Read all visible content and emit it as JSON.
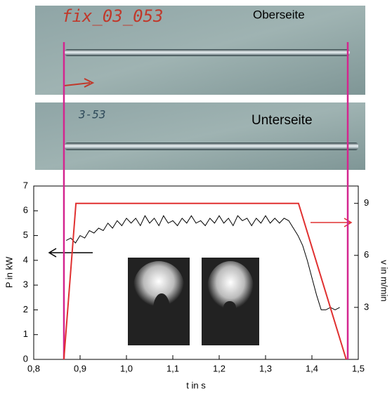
{
  "chart_data": {
    "type": "line",
    "annotations": [
      "fix_03_053",
      "Oberseite",
      "3-53",
      "Unterseite"
    ],
    "xlabel": "t in s",
    "ylabel": "P in kW",
    "y2label": "v in m/min",
    "xlim": [
      0.8,
      1.5
    ],
    "xticks": [
      {
        "value": 0.8,
        "label": "0,8"
      },
      {
        "value": 0.9,
        "label": "0,9"
      },
      {
        "value": 1.0,
        "label": "1,0"
      },
      {
        "value": 1.1,
        "label": "1,1"
      },
      {
        "value": 1.2,
        "label": "1,2"
      },
      {
        "value": 1.3,
        "label": "1,3"
      },
      {
        "value": 1.4,
        "label": "1,4"
      },
      {
        "value": 1.5,
        "label": "1,5"
      }
    ],
    "ylim": [
      0,
      7
    ],
    "yticks": [
      0,
      1,
      2,
      3,
      4,
      5,
      6,
      7
    ],
    "y2lim": [
      0,
      10
    ],
    "y2ticks": [
      3,
      6,
      9
    ],
    "series": [
      {
        "color": "#000000",
        "x": [
          0.87,
          0.88,
          0.89,
          0.9,
          0.91,
          0.92,
          0.93,
          0.94,
          0.95,
          0.96,
          0.97,
          0.98,
          0.99,
          1.0,
          1.01,
          1.02,
          1.03,
          1.04,
          1.05,
          1.06,
          1.07,
          1.08,
          1.09,
          1.1,
          1.11,
          1.12,
          1.13,
          1.14,
          1.15,
          1.16,
          1.17,
          1.18,
          1.19,
          1.2,
          1.21,
          1.22,
          1.23,
          1.24,
          1.25,
          1.26,
          1.27,
          1.28,
          1.29,
          1.3,
          1.31,
          1.32,
          1.33,
          1.34,
          1.35,
          1.36,
          1.37,
          1.38,
          1.39,
          1.4,
          1.41,
          1.42,
          1.43,
          1.44,
          1.45,
          1.46
        ],
        "values": [
          4.8,
          4.9,
          4.7,
          5.0,
          4.9,
          5.2,
          5.1,
          5.3,
          5.2,
          5.5,
          5.3,
          5.6,
          5.4,
          5.7,
          5.5,
          5.7,
          5.4,
          5.8,
          5.5,
          5.7,
          5.4,
          5.8,
          5.5,
          5.6,
          5.4,
          5.7,
          5.5,
          5.8,
          5.5,
          5.6,
          5.4,
          5.7,
          5.5,
          5.8,
          5.5,
          5.7,
          5.4,
          5.8,
          5.6,
          5.7,
          5.4,
          5.7,
          5.5,
          5.8,
          5.5,
          5.7,
          5.5,
          5.7,
          5.6,
          5.3,
          5.0,
          4.6,
          4.0,
          3.3,
          2.6,
          2.0,
          2.0,
          2.1,
          2.0,
          2.1
        ]
      },
      {
        "color": "#e03030",
        "axis": "y2",
        "x": [
          0.865,
          0.891,
          1.371,
          1.474
        ],
        "values": [
          0,
          9,
          9,
          0
        ]
      }
    ]
  }
}
